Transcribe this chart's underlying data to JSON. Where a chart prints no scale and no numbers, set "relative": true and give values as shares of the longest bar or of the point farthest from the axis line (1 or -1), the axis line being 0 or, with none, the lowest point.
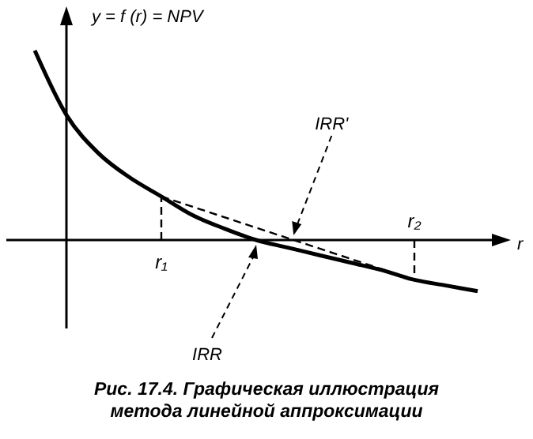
{
  "chart_data": {
    "type": "line",
    "relative": true,
    "marker": "none",
    "categories": [
      null,
      null,
      null,
      null,
      "r₁",
      null,
      null,
      null,
      null,
      null,
      null,
      null,
      "r₂",
      null,
      null
    ],
    "series": [
      {
        "color": "#000000",
        "line_style": "solid",
        "values": [
          1,
          0.66,
          0.46,
          0.33,
          0.23,
          0.13,
          0.06,
          0,
          -0.04,
          -0.08,
          -0.12,
          -0.16,
          -0.21,
          -0.24,
          -0.27
        ]
      },
      {
        "color": "#000000",
        "line_style": "dashed",
        "values": [
          null,
          null,
          null,
          null,
          0.23,
          null,
          null,
          null,
          null,
          null,
          null,
          null,
          -0.21,
          null,
          null
        ]
      }
    ],
    "xlabel": "r",
    "ylabel": "y = f (r) = NPV",
    "ref_lines": [
      {
        "axis": "x",
        "value": "r₁",
        "line_style": "dashed"
      },
      {
        "axis": "x",
        "value": "r₂",
        "line_style": "dashed"
      }
    ],
    "annotations": [
      "IRR",
      "IRR'",
      "Рис. 17.4. Графическая иллюстрация метода линейной аппроксимации"
    ]
  }
}
